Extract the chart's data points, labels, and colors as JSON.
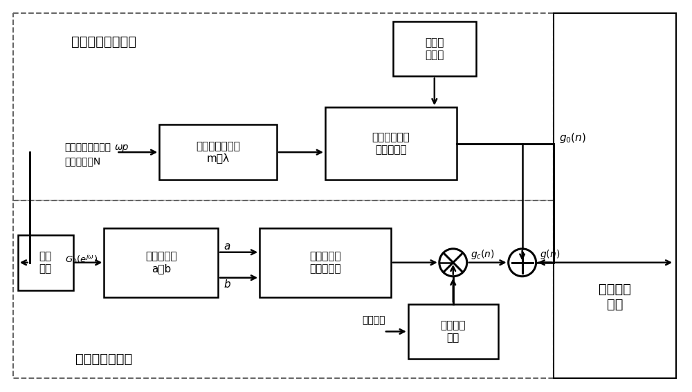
{
  "bg_color": "#ffffff",
  "fig_width": 10.0,
  "fig_height": 5.67,
  "top_region_label": "补偿前滤波器设计",
  "bottom_region_label": "补偿滤波器设计",
  "right_region_label": "系数叠加\n过程",
  "box_hamming": "哈明卷\n积单窗",
  "box_determine": "确定滤波器参数\nm、λ",
  "box_prefilter": "补偿前滤波器\n系数解析式",
  "box_freqresp": "频率\n响应",
  "box_compparams": "求补偿参数\na、b",
  "box_compfilter": "补偿滤波器\n系数解析式",
  "box_kaiser": "凯撒卷积\n单窗",
  "label_input1": "给定通带截止频率",
  "label_wp": "ωp",
  "label_input2": "滤波器阶数N",
  "label_optimize": "优化参数"
}
